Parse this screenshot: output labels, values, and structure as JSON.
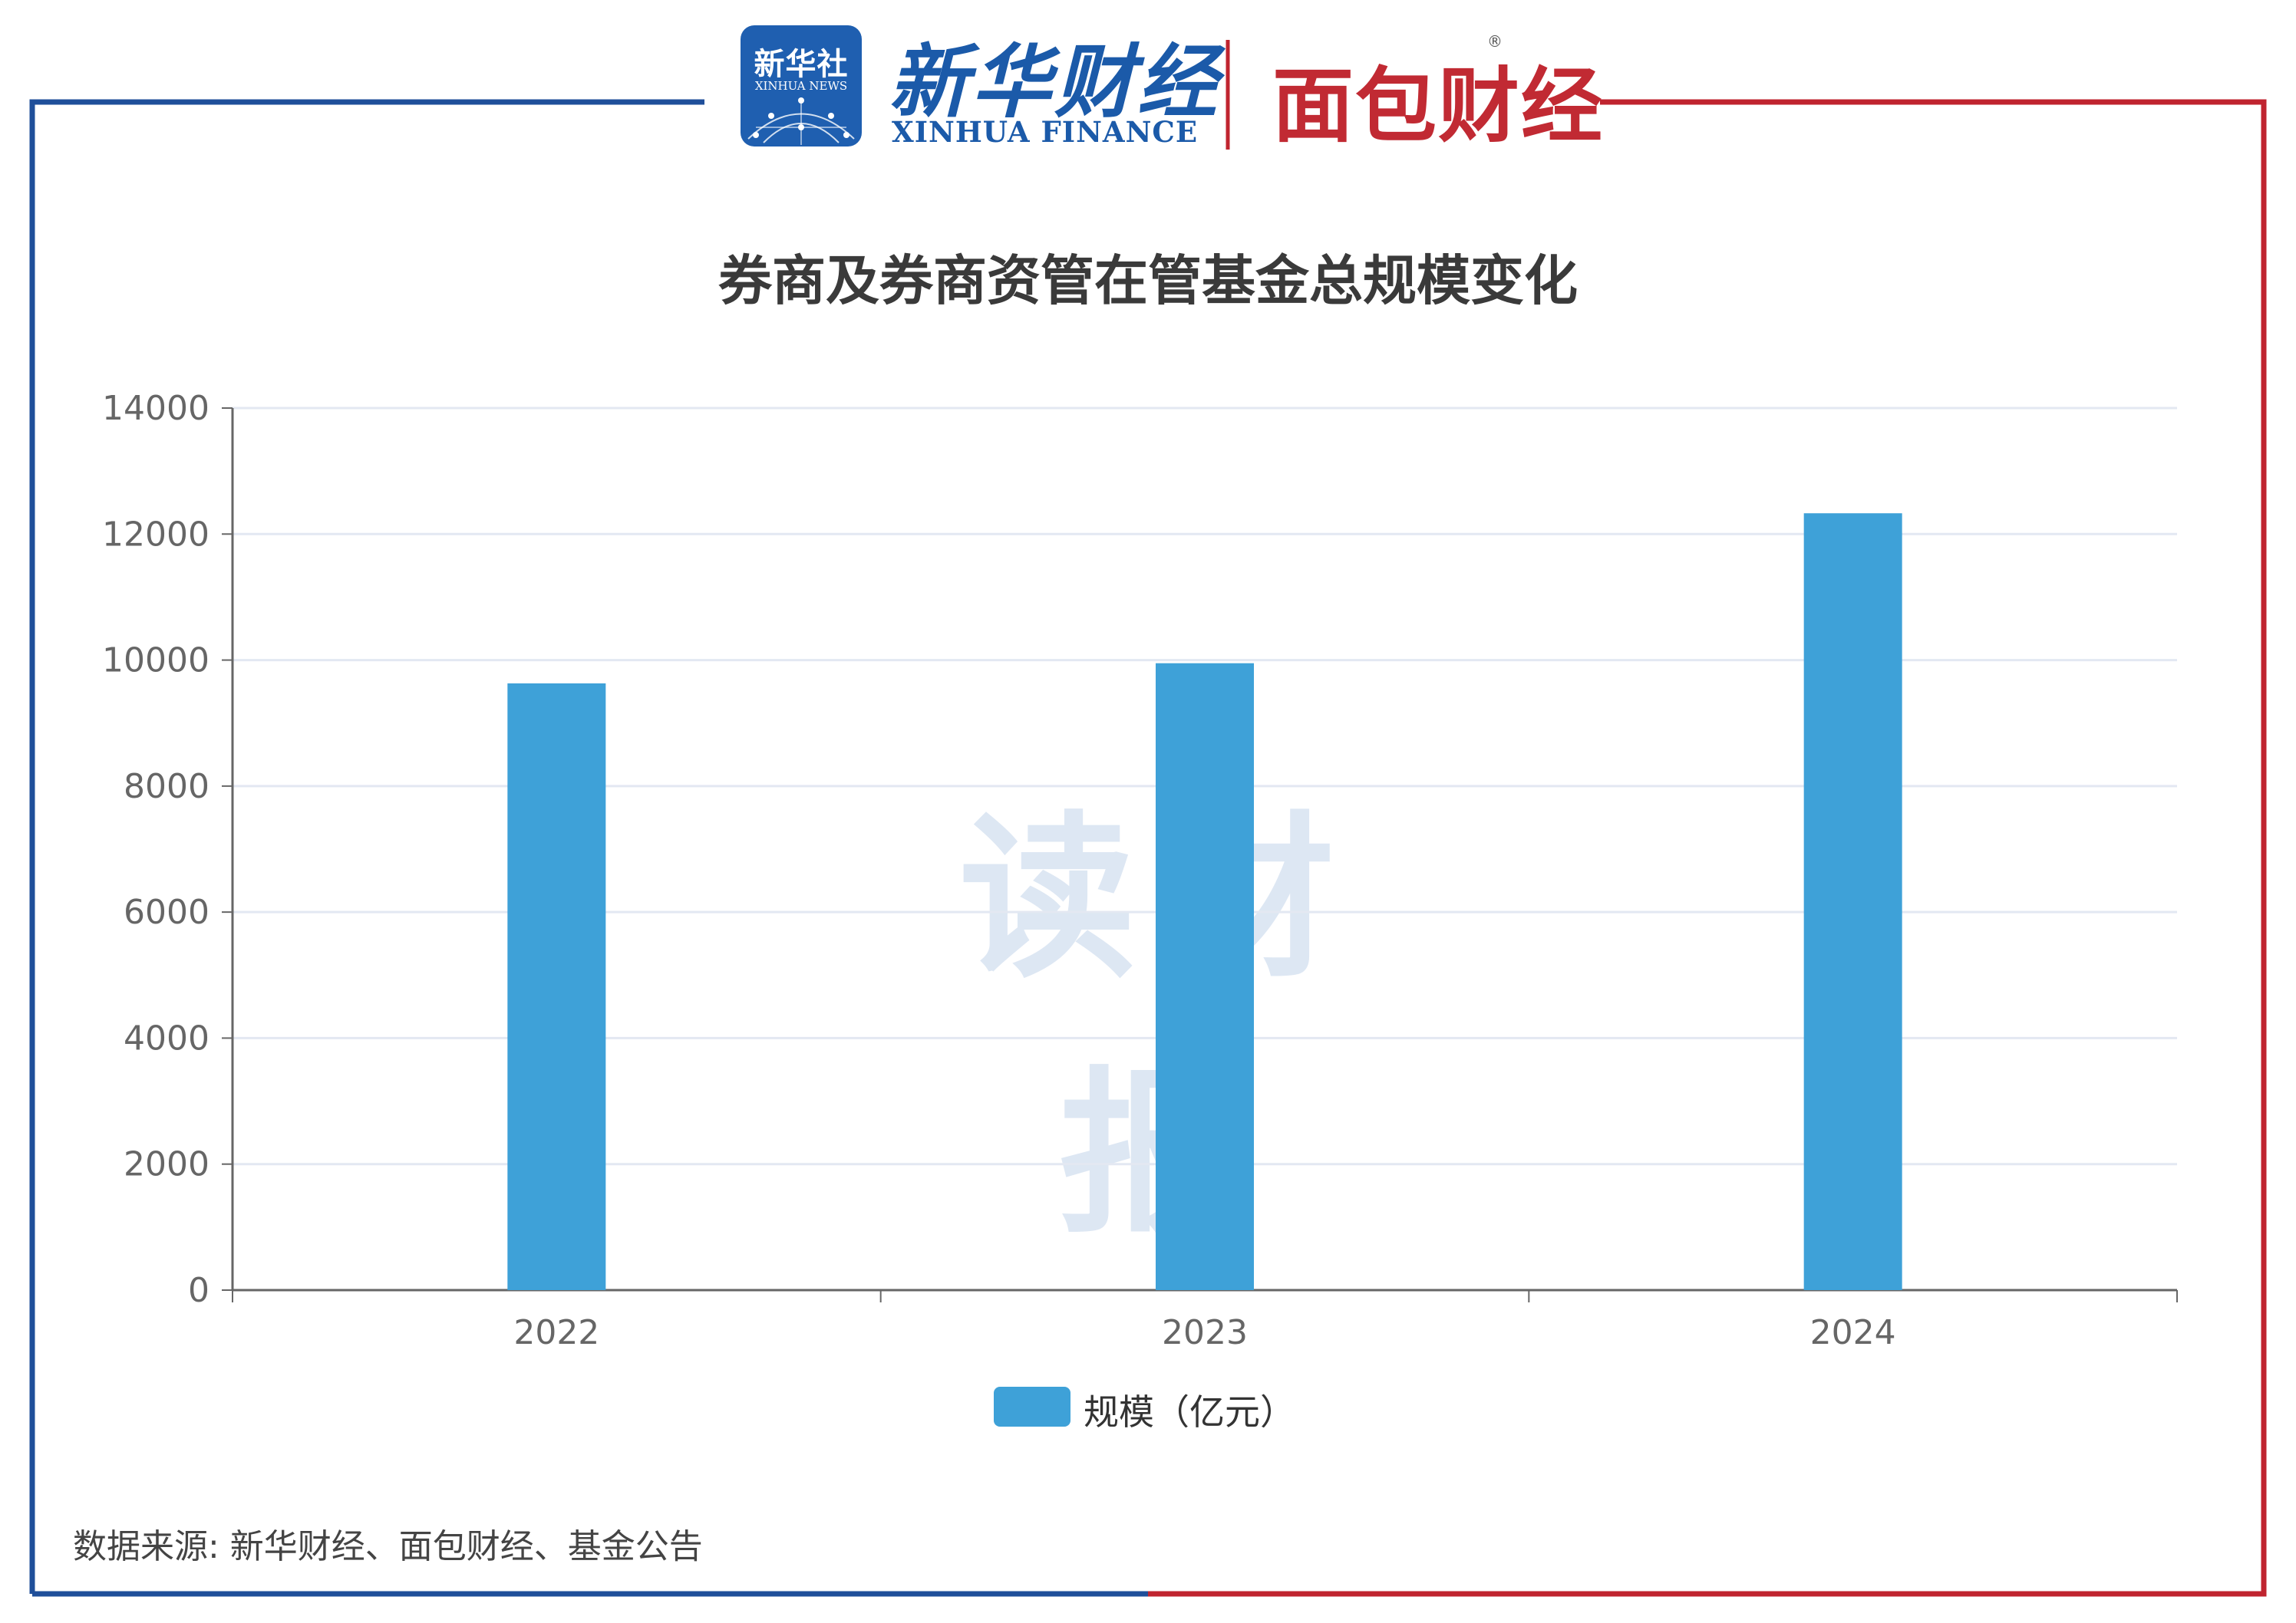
{
  "header": {
    "xinhua_news_logo_cn": "新华社",
    "xinhua_news_logo_en": "XINHUA NEWS",
    "xinhua_finance_cn": "新华财经",
    "xinhua_finance_en": "XINHUA FINANCE",
    "mianbao_logo": "面包财经",
    "registered_mark": "®"
  },
  "watermark": "读财报",
  "source": "数据来源: 新华财经、面包财经、基金公告",
  "colors": {
    "bar": "#3ea1d8",
    "frame_left": "#1f4f9a",
    "frame_right": "#c0242f",
    "grid": "#e3e8f2"
  },
  "chart_data": {
    "type": "bar",
    "title": "券商及券商资管在管基金总规模变化",
    "categories": [
      "2022",
      "2023",
      "2024"
    ],
    "series": [
      {
        "name": "规模（亿元）",
        "values": [
          9630,
          9950,
          12330
        ]
      }
    ],
    "ylim": [
      0,
      14000
    ],
    "yticks": [
      "0",
      "2000",
      "4000",
      "6000",
      "8000",
      "10000",
      "12000",
      "14000"
    ],
    "grid": true,
    "legend": "bottom-center"
  }
}
